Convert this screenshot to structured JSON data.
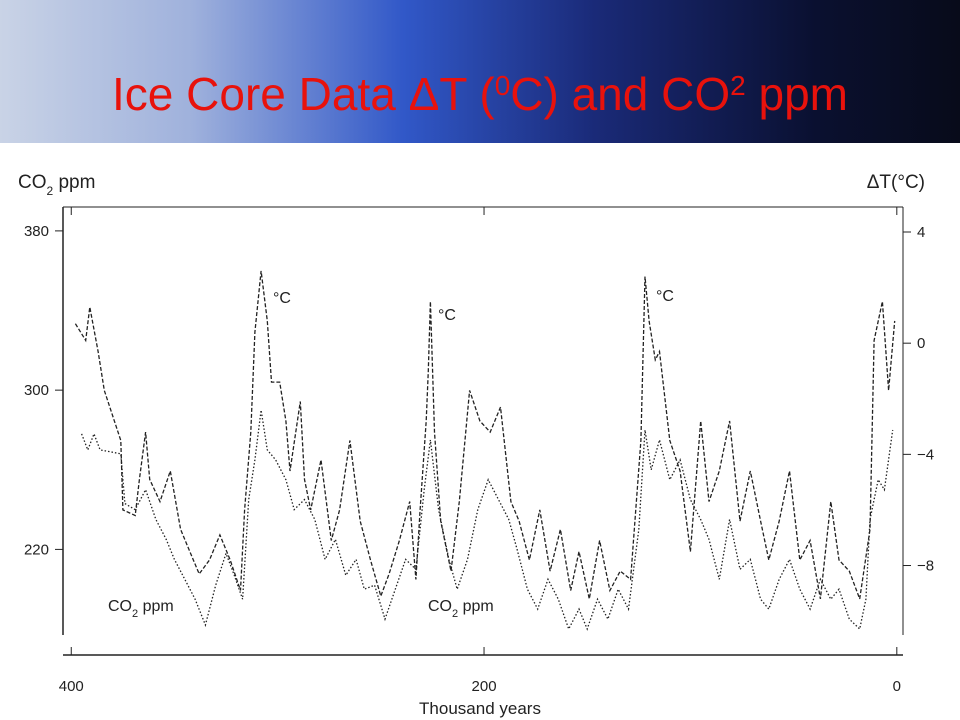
{
  "chart_data": {
    "type": "line",
    "title": [
      "Ice Core Data ΔT (",
      "0",
      "C) and CO",
      "2",
      " ppm"
    ],
    "y_label": [
      "CO",
      "2",
      " ppm"
    ],
    "y2_label": "ΔT(°C)",
    "x_label": "Thousand years",
    "annotations": [
      "°C",
      "°C",
      "°C"
    ],
    "co2_annotations": [
      [
        "CO",
        "2",
        " ppm"
      ],
      [
        "CO",
        "2",
        " ppm"
      ]
    ],
    "xlim": [
      404,
      -3
    ],
    "xticks": [
      400,
      200,
      0
    ],
    "ylim": [
      177,
      392
    ],
    "yticks": [
      220,
      300,
      380
    ],
    "y2lim": [
      -10.5,
      4.9
    ],
    "y2ticks": [
      4,
      0,
      {
        "value": -4,
        "label": "−4"
      },
      {
        "value": -8,
        "label": "−8"
      }
    ],
    "series": [
      {
        "axis": "y2",
        "color": "#222222",
        "dash": "4,2",
        "x": [
          398,
          393,
          391,
          387,
          384,
          376,
          375,
          369,
          367,
          364,
          362,
          357,
          352,
          347,
          342,
          338,
          333,
          328,
          323,
          318,
          316,
          313,
          311,
          308,
          305,
          303,
          299,
          296,
          294,
          289,
          287,
          284,
          279,
          274,
          270,
          265,
          260,
          255,
          250,
          246,
          241,
          236,
          233,
          231,
          228,
          227,
          226,
          224,
          221,
          216,
          212,
          207,
          202,
          197,
          192,
          187,
          183,
          178,
          173,
          168,
          163,
          158,
          154,
          149,
          144,
          139,
          134,
          129,
          124,
          122,
          120,
          117,
          115,
          110,
          105,
          100,
          95,
          91,
          86,
          81,
          76,
          71,
          66,
          62,
          57,
          52,
          47,
          42,
          37,
          32,
          28,
          23,
          18,
          13,
          11,
          7,
          4,
          1
        ],
        "values": [
          0.7,
          0.1,
          1.3,
          -0.3,
          -1.7,
          -3.5,
          -6.0,
          -6.2,
          -4.9,
          -3.2,
          -4.9,
          -5.7,
          -4.6,
          -6.7,
          -7.6,
          -8.3,
          -7.8,
          -6.9,
          -7.8,
          -8.9,
          -6.0,
          -3.2,
          0.4,
          2.6,
          0.8,
          -1.4,
          -1.4,
          -2.8,
          -4.6,
          -2.1,
          -4.9,
          -6.0,
          -4.2,
          -7.1,
          -6.0,
          -3.5,
          -6.4,
          -7.8,
          -9.1,
          -8.3,
          -7.1,
          -5.7,
          -8.5,
          -6.0,
          -2.8,
          -1.0,
          1.5,
          -3.2,
          -6.4,
          -8.2,
          -5.7,
          -1.7,
          -2.8,
          -3.2,
          -2.3,
          -5.7,
          -6.4,
          -7.8,
          -6.0,
          -8.2,
          -6.7,
          -8.9,
          -7.5,
          -9.2,
          -7.1,
          -8.9,
          -8.2,
          -8.5,
          -3.5,
          2.4,
          0.8,
          -0.6,
          -0.3,
          -3.5,
          -4.6,
          -7.5,
          -2.8,
          -5.7,
          -4.6,
          -2.8,
          -6.4,
          -4.6,
          -6.4,
          -7.8,
          -6.4,
          -4.6,
          -7.8,
          -7.1,
          -9.2,
          -5.7,
          -7.8,
          -8.2,
          -9.2,
          -6.7,
          0.1,
          1.5,
          -1.7,
          0.8
        ]
      },
      {
        "axis": "y",
        "color": "#222222",
        "dash": "1.5,2",
        "x": [
          395,
          392,
          389,
          386,
          376,
          374,
          369,
          364,
          359,
          354,
          350,
          345,
          340,
          335,
          330,
          325,
          321,
          317,
          314,
          311,
          308,
          305,
          301,
          296,
          292,
          287,
          282,
          277,
          272,
          267,
          262,
          258,
          253,
          248,
          243,
          238,
          233,
          229,
          226,
          222,
          217,
          213,
          208,
          203,
          198,
          193,
          188,
          184,
          179,
          174,
          169,
          164,
          159,
          154,
          150,
          145,
          140,
          135,
          130,
          125,
          122,
          119,
          115,
          110,
          105,
          100,
          95,
          91,
          86,
          81,
          76,
          71,
          66,
          62,
          57,
          52,
          47,
          42,
          37,
          32,
          28,
          23,
          18,
          15,
          13,
          9,
          6,
          2
        ],
        "values": [
          278,
          270,
          278,
          270,
          268,
          243,
          240,
          250,
          235,
          225,
          215,
          205,
          195,
          182,
          202,
          218,
          207,
          195,
          245,
          265,
          290,
          270,
          265,
          255,
          240,
          245,
          235,
          215,
          225,
          207,
          215,
          200,
          202,
          185,
          200,
          215,
          210,
          250,
          275,
          240,
          215,
          200,
          215,
          240,
          255,
          245,
          235,
          220,
          200,
          190,
          205,
          195,
          180,
          190,
          180,
          195,
          185,
          200,
          190,
          230,
          280,
          260,
          275,
          255,
          265,
          245,
          235,
          225,
          205,
          235,
          210,
          215,
          195,
          190,
          205,
          215,
          200,
          190,
          205,
          195,
          200,
          185,
          180,
          195,
          235,
          255,
          250,
          280
        ]
      }
    ]
  }
}
